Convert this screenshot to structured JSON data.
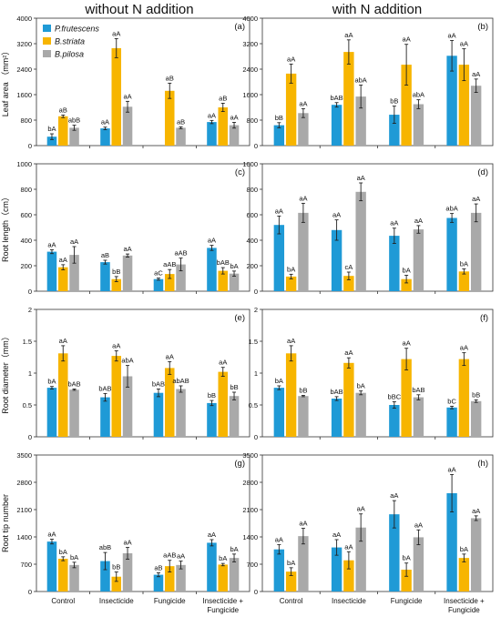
{
  "figure": {
    "col_titles": [
      "without N addition",
      "with N addition"
    ],
    "categories": [
      "Control",
      "Insecticide",
      "Fungicide",
      "Insecticide + Fungicide"
    ],
    "series_names": [
      "P.frutescens",
      "B.striata",
      "B.pilosa"
    ],
    "colors": {
      "P.frutescens": "#1f9ad6",
      "B.striata": "#f7b500",
      "B.pilosa": "#a9a9a9"
    },
    "legend_placement": "top-left of panel (a)"
  },
  "chart_data": [
    {
      "type": "bar",
      "panel": "(a)",
      "ylabel": "Leaf area （mm²）",
      "ylim": [
        0,
        4000
      ],
      "yticks": [
        0,
        800,
        1600,
        2400,
        3200,
        4000
      ],
      "categories": [
        "Control",
        "Insecticide",
        "Fungicide",
        "Insecticide + Fungicide"
      ],
      "series": [
        {
          "name": "P.frutescens",
          "values": [
            280,
            540,
            null,
            740
          ],
          "errors": [
            90,
            40,
            null,
            50
          ],
          "labels": [
            "bA",
            "aA",
            "",
            "aA"
          ]
        },
        {
          "name": "B.striata",
          "values": [
            920,
            3060,
            1720,
            1200
          ],
          "errors": [
            40,
            300,
            240,
            130
          ],
          "labels": [
            "aB",
            "aA",
            "aB",
            "aB"
          ]
        },
        {
          "name": "B.pilosa",
          "values": [
            560,
            1220,
            560,
            640
          ],
          "errors": [
            80,
            170,
            30,
            90
          ],
          "labels": [
            "abB",
            "aA",
            "aB",
            "aA"
          ]
        }
      ]
    },
    {
      "type": "bar",
      "panel": "(b)",
      "ylabel": "",
      "ylim": [
        0,
        4000
      ],
      "yticks": [
        0,
        800,
        1600,
        2400,
        3200,
        4000
      ],
      "categories": [
        "Control",
        "Insecticide",
        "Fungicide",
        "Insecticide + Fungicide"
      ],
      "series": [
        {
          "name": "P.frutescens",
          "values": [
            640,
            1280,
            970,
            2820
          ],
          "errors": [
            80,
            70,
            270,
            480
          ],
          "labels": [
            "bB",
            "bAB",
            "bB",
            "aA"
          ]
        },
        {
          "name": "B.striata",
          "values": [
            2260,
            2940,
            2540,
            2540
          ],
          "errors": [
            300,
            380,
            640,
            500
          ],
          "labels": [
            "aA",
            "aA",
            "aA",
            "aA"
          ]
        },
        {
          "name": "B.pilosa",
          "values": [
            1020,
            1540,
            1300,
            1880
          ],
          "errors": [
            140,
            360,
            140,
            210
          ],
          "labels": [
            "aA",
            "abA",
            "abA",
            "aA"
          ]
        }
      ]
    },
    {
      "type": "bar",
      "panel": "(c)",
      "ylabel": "Root length（cm）",
      "ylim": [
        0,
        1000
      ],
      "yticks": [
        0,
        200,
        400,
        600,
        800,
        1000
      ],
      "categories": [
        "Control",
        "Insecticide",
        "Fungicide",
        "Insecticide + Fungicide"
      ],
      "series": [
        {
          "name": "P.frutescens",
          "values": [
            310,
            228,
            95,
            340
          ],
          "errors": [
            15,
            15,
            8,
            20
          ],
          "labels": [
            "aA",
            "aB",
            "aC",
            "aA"
          ]
        },
        {
          "name": "B.striata",
          "values": [
            188,
            95,
            135,
            160
          ],
          "errors": [
            20,
            20,
            35,
            25
          ],
          "labels": [
            "aA",
            "bB",
            "aAB",
            "bAB"
          ]
        },
        {
          "name": "B.pilosa",
          "values": [
            285,
            280,
            210,
            138
          ],
          "errors": [
            65,
            12,
            50,
            20
          ],
          "labels": [
            "aA",
            "aA",
            "aAB",
            "bA"
          ]
        }
      ]
    },
    {
      "type": "bar",
      "panel": "(d)",
      "ylabel": "",
      "ylim": [
        0,
        1000
      ],
      "yticks": [
        0,
        200,
        400,
        600,
        800,
        1000
      ],
      "categories": [
        "Control",
        "Insecticide",
        "Fungicide",
        "Insecticide + Fungicide"
      ],
      "series": [
        {
          "name": "P.frutescens",
          "values": [
            520,
            480,
            435,
            575
          ],
          "errors": [
            70,
            80,
            60,
            35
          ],
          "labels": [
            "aA",
            "aA",
            "aA",
            "abA"
          ]
        },
        {
          "name": "B.striata",
          "values": [
            115,
            120,
            95,
            155
          ],
          "errors": [
            18,
            30,
            30,
            20
          ],
          "labels": [
            "bA",
            "cA",
            "bA",
            "bA"
          ]
        },
        {
          "name": "B.pilosa",
          "values": [
            615,
            780,
            485,
            615
          ],
          "errors": [
            75,
            70,
            30,
            70
          ],
          "labels": [
            "aA",
            "aA",
            "aA",
            "aA"
          ]
        }
      ]
    },
    {
      "type": "bar",
      "panel": "(e)",
      "ylabel": "Root diameter（mm）",
      "ylim": [
        0,
        2
      ],
      "yticks": [
        0,
        0.5,
        1,
        1.5,
        2
      ],
      "categories": [
        "Control",
        "Insecticide",
        "Fungicide",
        "Insecticide + Fungicide"
      ],
      "series": [
        {
          "name": "P.frutescens",
          "values": [
            0.77,
            0.62,
            0.69,
            0.53
          ],
          "errors": [
            0.02,
            0.06,
            0.06,
            0.04
          ],
          "labels": [
            "bA",
            "bAB",
            "bAB",
            "bB"
          ]
        },
        {
          "name": "B.striata",
          "values": [
            1.31,
            1.27,
            1.08,
            1.02
          ],
          "errors": [
            0.12,
            0.08,
            0.1,
            0.07
          ],
          "labels": [
            "aA",
            "aA",
            "aA",
            "aA"
          ]
        },
        {
          "name": "B.pilosa",
          "values": [
            0.74,
            0.95,
            0.75,
            0.64
          ],
          "errors": [
            0.01,
            0.17,
            0.05,
            0.06
          ],
          "labels": [
            "bAB",
            "abA",
            "abAB",
            "bB"
          ]
        }
      ]
    },
    {
      "type": "bar",
      "panel": "(f)",
      "ylabel": "",
      "ylim": [
        0,
        2
      ],
      "yticks": [
        0,
        0.5,
        1,
        1.5,
        2
      ],
      "categories": [
        "Control",
        "Insecticide",
        "Fungicide",
        "Insecticide + Fungicide"
      ],
      "series": [
        {
          "name": "P.frutescens",
          "values": [
            0.77,
            0.6,
            0.5,
            0.46
          ],
          "errors": [
            0.03,
            0.03,
            0.05,
            0.02
          ],
          "labels": [
            "bA",
            "bAB",
            "bBC",
            "bC"
          ]
        },
        {
          "name": "B.striata",
          "values": [
            1.31,
            1.16,
            1.22,
            1.22
          ],
          "errors": [
            0.12,
            0.08,
            0.17,
            0.1
          ],
          "labels": [
            "aA",
            "aA",
            "aA",
            "aA"
          ]
        },
        {
          "name": "B.pilosa",
          "values": [
            0.64,
            0.69,
            0.62,
            0.56
          ],
          "errors": [
            0.01,
            0.03,
            0.04,
            0.02
          ],
          "labels": [
            "bB",
            "bA",
            "bAB",
            "bB"
          ]
        }
      ]
    },
    {
      "type": "bar",
      "panel": "(g)",
      "ylabel": "Root tip number",
      "ylim": [
        0,
        3500
      ],
      "yticks": [
        0,
        700,
        1400,
        2100,
        2800,
        3500
      ],
      "categories": [
        "Control",
        "Insecticide",
        "Fungicide",
        "Insecticide + Fungicide"
      ],
      "series": [
        {
          "name": "P.frutescens",
          "values": [
            1280,
            780,
            430,
            1250
          ],
          "errors": [
            60,
            220,
            50,
            80
          ],
          "labels": [
            "aA",
            "abB",
            "aB",
            "aA"
          ]
        },
        {
          "name": "B.striata",
          "values": [
            840,
            380,
            650,
            690
          ],
          "errors": [
            50,
            120,
            150,
            30
          ],
          "labels": [
            "bA",
            "bB",
            "aAB",
            "bA"
          ]
        },
        {
          "name": "B.pilosa",
          "values": [
            680,
            980,
            680,
            860
          ],
          "errors": [
            70,
            150,
            100,
            100
          ],
          "labels": [
            "bA",
            "aA",
            "aA",
            "bA"
          ]
        }
      ]
    },
    {
      "type": "bar",
      "panel": "(h)",
      "ylabel": "",
      "ylim": [
        0,
        3500
      ],
      "yticks": [
        0,
        700,
        1400,
        2100,
        2800,
        3500
      ],
      "categories": [
        "Control",
        "Insecticide",
        "Fungicide",
        "Insecticide + Fungicide"
      ],
      "series": [
        {
          "name": "P.frutescens",
          "values": [
            1080,
            1130,
            1980,
            2520
          ],
          "errors": [
            120,
            200,
            350,
            480
          ],
          "labels": [
            "aA",
            "aA",
            "aA",
            "aA"
          ]
        },
        {
          "name": "B.striata",
          "values": [
            510,
            800,
            560,
            860
          ],
          "errors": [
            100,
            220,
            170,
            100
          ],
          "labels": [
            "bA",
            "aA",
            "bA",
            "bA"
          ]
        },
        {
          "name": "B.pilosa",
          "values": [
            1420,
            1640,
            1390,
            1880
          ],
          "errors": [
            200,
            350,
            190,
            60
          ],
          "labels": [
            "aA",
            "aA",
            "aA",
            "aA"
          ]
        }
      ]
    }
  ]
}
